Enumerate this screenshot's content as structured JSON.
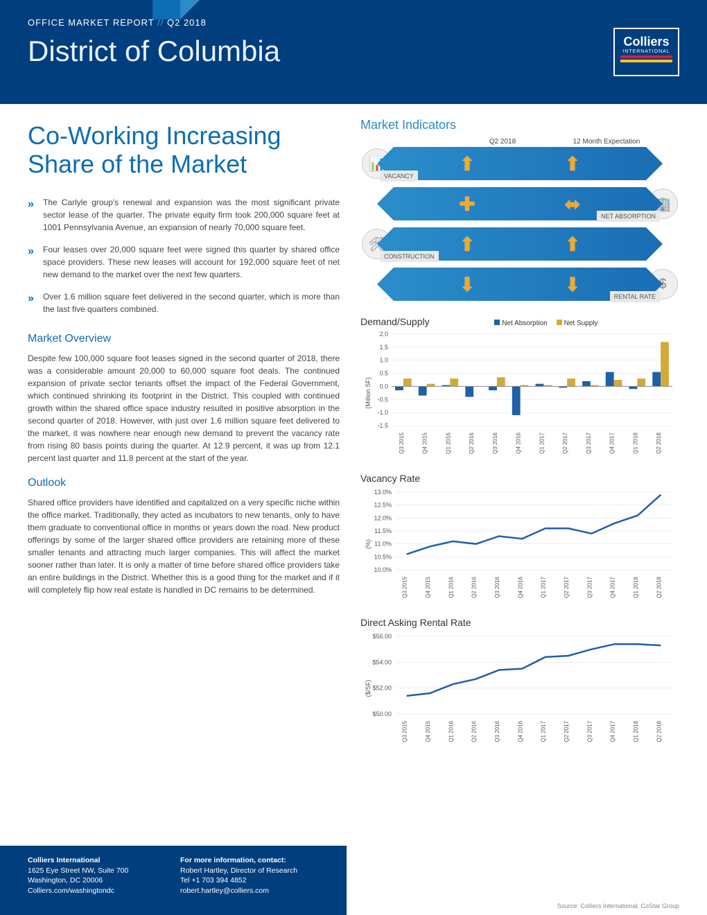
{
  "header": {
    "report_label_1": "OFFICE MARKET REPORT",
    "report_label_sep": " // ",
    "report_label_2": "Q2 2018",
    "region": "District of Columbia",
    "logo_main": "Colliers",
    "logo_sub": "INTERNATIONAL"
  },
  "headline": "Co-Working Increasing Share of the Market",
  "bullets": [
    "The Carlyle group's renewal and expansion was the most significant private sector lease of the quarter. The private equity firm took 200,000 square feet at 1001 Pennsylvania Avenue, an expansion of nearly 70,000 square feet.",
    "Four leases over 20,000 square feet were signed this quarter by shared office space providers. These new leases will account for 192,000 square feet of net new demand to the market over the next few quarters.",
    "Over 1.6 million square feet delivered in the second quarter, which is more than the last five quarters combined."
  ],
  "overview": {
    "title": "Market Overview",
    "text": "Despite few 100,000 square foot leases signed in the second quarter of 2018, there was a considerable amount 20,000 to 60,000 square foot deals. The continued expansion of private sector tenants offset the impact of the Federal Government, which continued shrinking its footprint in the District. This coupled with continued growth within the shared office space industry resulted in positive absorption in the second quarter of 2018. However, with just over 1.6 million square feet delivered to the market, it was nowhere near enough new demand to prevent the vacancy rate from rising 80 basis points during the quarter. At 12.9 percent, it was up from 12.1 percent last quarter and 11.8 percent at the start of the year."
  },
  "outlook": {
    "title": "Outlook",
    "text": "Shared office providers have identified and capitalized on a very specific niche within the office market. Traditionally, they acted as incubators to new tenants, only to have them graduate to conventional office in months or years down the road. New product offerings by some of the larger shared office providers are retaining more of these smaller tenants and attracting much larger companies. This will affect the market sooner rather than later. It is only a matter of time before shared office providers take an entire buildings in the District.  Whether this is a good thing for the market and if it will completely flip how real estate is handled in DC remains to be determined."
  },
  "market_indicators": {
    "title": "Market Indicators",
    "col_q": "Q2 2018",
    "col_exp": "12 Month Expectation",
    "rows": [
      {
        "label": "VACANCY",
        "icon": "bars",
        "label_side": "left",
        "q": "up",
        "exp": "up"
      },
      {
        "label": "NET ABSORPTION",
        "icon": "building",
        "label_side": "right",
        "q": "plus",
        "exp": "lr"
      },
      {
        "label": "CONSTRUCTION",
        "icon": "tools",
        "label_side": "left",
        "q": "up",
        "exp": "up"
      },
      {
        "label": "RENTAL RATE",
        "icon": "dollar",
        "label_side": "right",
        "q": "down",
        "exp": "down"
      }
    ]
  },
  "quarters": [
    "Q3 2015",
    "Q4 2015",
    "Q1 2016",
    "Q2 2016",
    "Q3 2016",
    "Q4 2016",
    "Q1 2017",
    "Q2 2017",
    "Q3 2017",
    "Q4 2017",
    "Q1 2018",
    "Q2 2018"
  ],
  "demand_supply": {
    "title": "Demand/Supply",
    "ylabel": "(Million SF)",
    "legend": [
      {
        "name": "Net Absorption",
        "color": "#1f60a8"
      },
      {
        "name": "Net Supply",
        "color": "#d3a93a"
      }
    ],
    "ylim": [
      -1.5,
      2.0
    ],
    "ytick_step": 0.5,
    "absorption": [
      -0.15,
      -0.35,
      0.05,
      -0.4,
      -0.15,
      -1.1,
      0.1,
      -0.05,
      0.2,
      0.55,
      -0.1,
      0.55
    ],
    "supply": [
      0.3,
      0.1,
      0.3,
      0.0,
      0.35,
      0.05,
      0.05,
      0.3,
      0.05,
      0.25,
      0.3,
      1.7
    ],
    "bar_color_abs": "#1f60a8",
    "bar_color_sup": "#d3a93a",
    "background": "#ffffff",
    "grid_color": "#dddddd"
  },
  "vacancy": {
    "title": "Vacancy Rate",
    "ylabel": "(%)",
    "ylim": [
      10.0,
      13.0
    ],
    "ytick_step": 0.5,
    "values": [
      10.6,
      10.9,
      11.1,
      11.0,
      11.3,
      11.2,
      11.6,
      11.6,
      11.4,
      11.8,
      12.1,
      12.9
    ],
    "line_color": "#1f60a8",
    "line_width": 2.5
  },
  "rental": {
    "title": "Direct Asking Rental Rate",
    "ylabel": "($/SF)",
    "ylim": [
      50.0,
      56.0
    ],
    "ytick_step": 2.0,
    "prefix": "$",
    "values": [
      51.4,
      51.6,
      52.3,
      52.7,
      53.4,
      53.5,
      54.4,
      54.5,
      55.0,
      55.4,
      55.4,
      55.3
    ],
    "line_color": "#1f60a8",
    "line_width": 2.5
  },
  "footer": {
    "company": "Colliers International",
    "addr1": "1625 Eye Street NW, Suite 700",
    "addr2": "Washington, DC 20006",
    "url": "Colliers.com/washingtondc",
    "contact_head": "For more information, contact:",
    "contact_name": "Robert Hartley, Director of Research",
    "contact_tel": "Tel +1 703 394 4852",
    "contact_email": "robert.hartley@colliers.com"
  },
  "source": "Source: Colliers International, CoStar Group"
}
